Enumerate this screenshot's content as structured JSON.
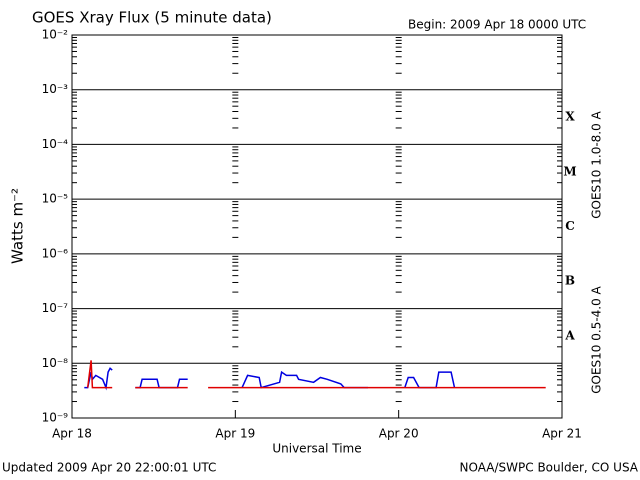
{
  "chart_data": {
    "type": "line",
    "title": "GOES Xray Flux (5 minute data)",
    "subtitle": "Begin:  2009 Apr 18 0000 UTC",
    "x_label": "Universal Time",
    "y_label": "Watts m⁻²",
    "footer_left": "Updated 2009 Apr 20 22:00:01 UTC",
    "footer_right": "NOAA/SWPC Boulder, CO USA",
    "flare_classes": [
      "X",
      "M",
      "C",
      "B",
      "A"
    ],
    "log_y": true,
    "grid": true,
    "xlim": [
      0,
      72
    ],
    "xticks": [
      {
        "value": 0,
        "label": "Apr 18"
      },
      {
        "value": 24,
        "label": "Apr 19"
      },
      {
        "value": 48,
        "label": "Apr 20"
      },
      {
        "value": 72,
        "label": "Apr 21"
      }
    ],
    "ylim": [
      1e-09,
      0.01
    ],
    "yticks": [
      {
        "value": 1e-09,
        "label": "10⁻⁹"
      },
      {
        "value": 1e-08,
        "label": "10⁻⁸"
      },
      {
        "value": 1e-07,
        "label": "10⁻⁷"
      },
      {
        "value": 1e-06,
        "label": "10⁻⁶"
      },
      {
        "value": 1e-05,
        "label": "10⁻⁵"
      },
      {
        "value": 0.0001,
        "label": "10⁻⁴"
      },
      {
        "value": 0.001,
        "label": "10⁻³"
      },
      {
        "value": 0.01,
        "label": "10⁻²"
      }
    ],
    "x": [
      1.8,
      2.3,
      2.8,
      3.0,
      3.5,
      4.5,
      5.0,
      5.3,
      5.6,
      5.9,
      7.5,
      9.3,
      10.0,
      10.3,
      12.5,
      12.8,
      15.5,
      15.8,
      17.0,
      18.5,
      20.0,
      25.0,
      25.8,
      27.5,
      27.8,
      30.5,
      30.8,
      31.5,
      33.0,
      33.3,
      35.5,
      36.5,
      37.5,
      39.5,
      40.0,
      43.5,
      45.0,
      48.9,
      49.4,
      50.2,
      51.0,
      53.5,
      53.9,
      55.7,
      56.2,
      69.6
    ],
    "series": [
      {
        "name": "GOES10 0.5-4.0 A",
        "color": "#0000e0",
        "values": [
          3.6e-09,
          3.6e-09,
          6.9e-09,
          5.1e-09,
          6e-09,
          5.1e-09,
          3.6e-09,
          6.9e-09,
          8.1e-09,
          7.5e-09,
          null,
          3.6e-09,
          3.6e-09,
          5.1e-09,
          5.1e-09,
          3.6e-09,
          3.6e-09,
          5.1e-09,
          5.1e-09,
          null,
          null,
          3.6e-09,
          6e-09,
          5.5e-09,
          3.6e-09,
          4.5e-09,
          6.9e-09,
          6e-09,
          6e-09,
          5.1e-09,
          4.5e-09,
          5.5e-09,
          5.1e-09,
          4.2e-09,
          3.6e-09,
          3.6e-09,
          null,
          3.6e-09,
          5.5e-09,
          5.5e-09,
          3.6e-09,
          3.6e-09,
          6.9e-09,
          6.9e-09,
          3.6e-09,
          null
        ]
      },
      {
        "name": "GOES10 1.0-8.0 A",
        "color": "#e00000",
        "values": [
          null,
          3.6e-09,
          1.13e-08,
          3.6e-09,
          3.6e-09,
          3.6e-09,
          3.6e-09,
          3.6e-09,
          3.6e-09,
          3.6e-09,
          null,
          3.6e-09,
          3.6e-09,
          3.6e-09,
          3.6e-09,
          3.6e-09,
          3.6e-09,
          3.6e-09,
          3.6e-09,
          null,
          3.6e-09,
          3.6e-09,
          3.6e-09,
          3.6e-09,
          3.6e-09,
          3.6e-09,
          3.6e-09,
          3.6e-09,
          3.6e-09,
          3.6e-09,
          3.6e-09,
          3.6e-09,
          3.6e-09,
          3.6e-09,
          3.6e-09,
          3.6e-09,
          3.6e-09,
          3.6e-09,
          3.6e-09,
          3.6e-09,
          3.6e-09,
          3.6e-09,
          3.6e-09,
          3.6e-09,
          3.6e-09,
          3.6e-09
        ]
      }
    ]
  }
}
